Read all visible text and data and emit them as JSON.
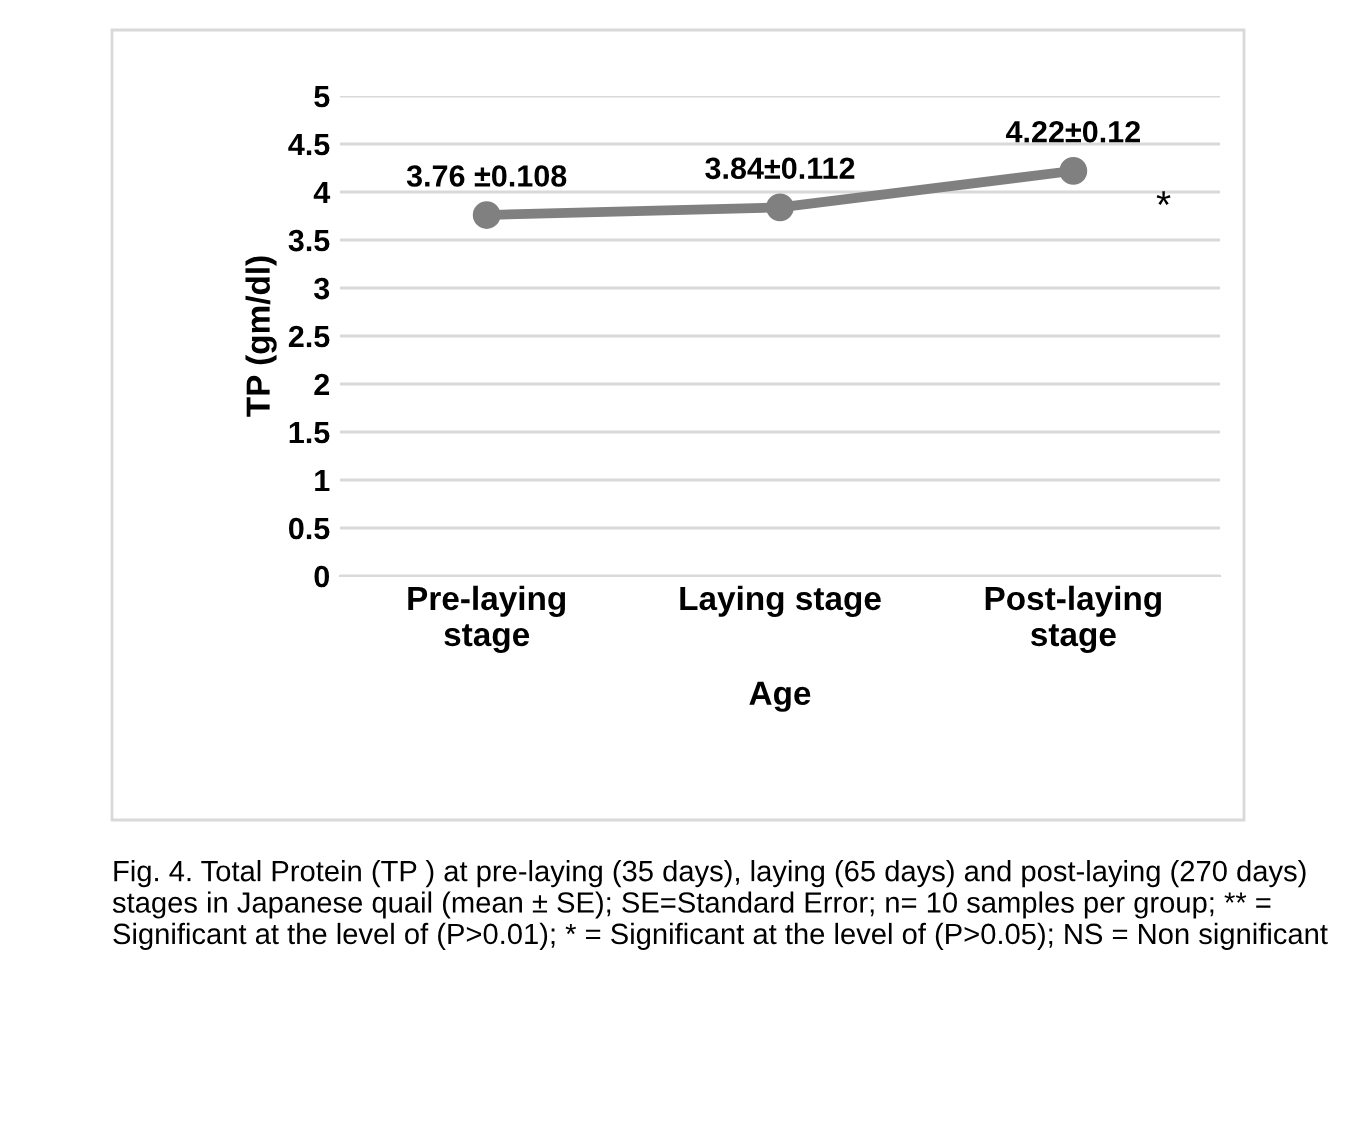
{
  "chart_data": {
    "type": "line",
    "xlabel": "Age",
    "ylabel": "TP (gm/dl)",
    "categories": [
      "Pre-laying\nstage",
      "Laying stage",
      "Post-laying\nstage"
    ],
    "series": [
      {
        "color": "#808080",
        "values": [
          3.76,
          3.84,
          4.22
        ],
        "value_labels": [
          "3.76 ±0.108",
          "3.84±0.112",
          "4.22±0.12"
        ]
      }
    ],
    "ylim": [
      0,
      5
    ],
    "yticks": [
      0,
      0.5,
      1,
      1.5,
      2,
      2.5,
      3,
      3.5,
      4,
      4.5,
      5
    ],
    "grid": "y",
    "marker": "circle",
    "line_style": "solid",
    "annotations": [
      "*",
      "Fig. 4. Total Protein (TP ) at pre-laying (35 days), laying (65 days) and post-laying (270 days) stages in Japanese quail (mean ± SE); SE=Standard Error; n= 10 samples per group; ** = Significant at the level of (P>0.01); * = Significant at the level of (P>0.05); NS = Non significant"
    ]
  }
}
